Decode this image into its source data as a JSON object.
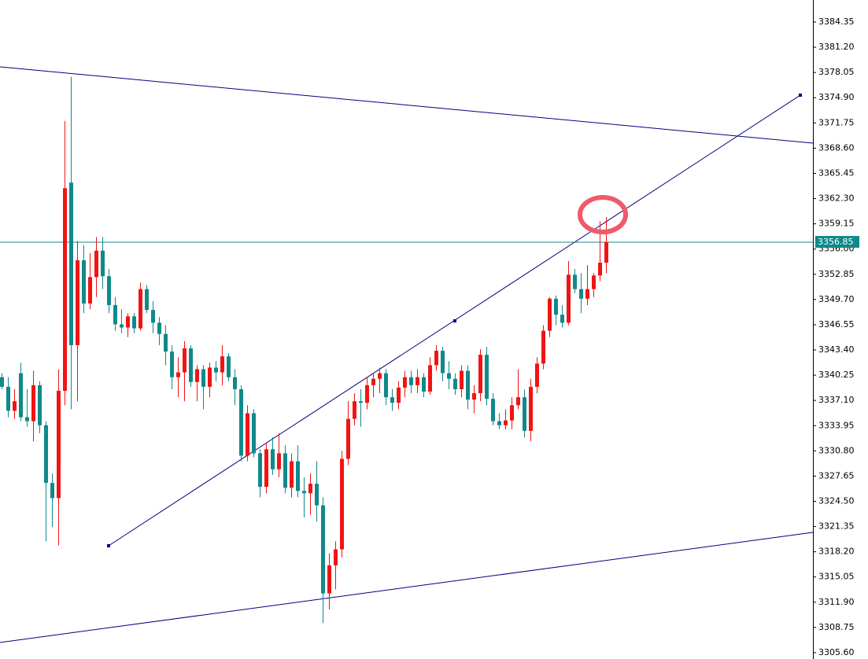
{
  "chart_data": {
    "type": "candlestick",
    "up_color": "#f01414",
    "down_color": "#10898a",
    "ylim": [
      3304.81,
      3387.1
    ],
    "yticks": [
      3384.35,
      {
        "value": 3381.2,
        "label": "3381.20"
      },
      3378.05,
      {
        "value": 3374.9,
        "label": "3374.90"
      },
      3371.75,
      {
        "value": 3368.6,
        "label": "3368.60"
      },
      3365.45,
      {
        "value": 3362.3,
        "label": "3362.30"
      },
      3359.15,
      {
        "value": 3356,
        "label": "3356.00"
      },
      3352.85,
      {
        "value": 3349.7,
        "label": "3349.70"
      },
      3346.55,
      {
        "value": 3343.4,
        "label": "3343.40"
      },
      3340.25,
      {
        "value": 3337.1,
        "label": "3337.10"
      },
      3333.95,
      {
        "value": 3330.8,
        "label": "3330.80"
      },
      3327.65,
      {
        "value": 3324.5,
        "label": "3324.50"
      },
      3321.35,
      {
        "value": 3318.2,
        "label": "3318.20"
      },
      3315.05,
      {
        "value": 3311.9,
        "label": "3311.90"
      },
      3308.75,
      {
        "value": 3305.6,
        "label": "3305.60"
      }
    ],
    "last_price": 3356.85,
    "open": [
      3340.0,
      3338.8,
      3335.8,
      3340.5,
      3335.0,
      3334.5,
      3339.0,
      3334.0,
      3326.8,
      3324.9,
      3338.3,
      3364.3,
      3344.0,
      3354.6,
      3349.2,
      3352.5,
      3355.8,
      3352.6,
      3349.0,
      3346.6,
      3346.2,
      3347.6,
      3346.1,
      3351.0,
      3348.4,
      3346.8,
      3345.4,
      3343.2,
      3340.0,
      3340.6,
      3343.6,
      3339.4,
      3341.0,
      3338.8,
      3341.2,
      3340.6,
      3342.6,
      3340.0,
      3338.5,
      3330.2,
      3335.5,
      3330.5,
      3326.3,
      3331.0,
      3328.5,
      3330.5,
      3326.2,
      3329.5,
      3325.8,
      3325.5,
      3326.7,
      3324.0,
      3313.0,
      3316.5,
      3318.5,
      3329.8,
      3334.8,
      3337.0,
      3336.8,
      3339.0,
      3339.8,
      3340.5,
      3337.5,
      3336.8,
      3338.7,
      3340.0,
      3339.0,
      3340.0,
      3338.2,
      3341.5,
      3343.3,
      3340.5,
      3339.8,
      3338.5,
      3340.8,
      3337.2,
      3338.0,
      3342.8,
      3337.3,
      3334.5,
      3334.0,
      3334.6,
      3336.5,
      3337.5,
      3333.3,
      3338.8,
      3341.7,
      3345.8,
      3349.8,
      3347.8,
      3346.8,
      3352.8,
      3351.0,
      3349.8,
      3351.0,
      3352.7,
      3354.3
    ],
    "high": [
      3340.5,
      3340.0,
      3338.5,
      3341.8,
      3338.5,
      3340.8,
      3339.5,
      3334.5,
      3328.0,
      3341.0,
      3372.0,
      3377.5,
      3357.0,
      3356.5,
      3355.5,
      3357.5,
      3357.5,
      3353.5,
      3350.0,
      3348.5,
      3348.0,
      3348.0,
      3351.8,
      3351.5,
      3349.5,
      3347.5,
      3346.5,
      3344.0,
      3342.5,
      3344.5,
      3344.0,
      3341.5,
      3341.5,
      3341.8,
      3342.0,
      3344.0,
      3343.0,
      3341.0,
      3339.0,
      3336.5,
      3336.0,
      3331.0,
      3331.8,
      3332.5,
      3333.0,
      3331.5,
      3330.5,
      3331.5,
      3327.5,
      3328.0,
      3329.5,
      3325.0,
      3318.0,
      3319.5,
      3330.8,
      3337.0,
      3338.0,
      3338.5,
      3340.0,
      3340.5,
      3341.2,
      3341.0,
      3338.5,
      3339.5,
      3340.8,
      3340.8,
      3341.0,
      3340.5,
      3342.5,
      3344.0,
      3343.8,
      3342.0,
      3340.5,
      3341.5,
      3341.5,
      3339.0,
      3343.5,
      3343.8,
      3338.0,
      3335.5,
      3336.0,
      3337.5,
      3341.0,
      3338.5,
      3339.8,
      3342.5,
      3346.5,
      3350.0,
      3350.2,
      3349.0,
      3354.5,
      3353.5,
      3353.0,
      3354.0,
      3353.0,
      3359.5,
      3360.0
    ],
    "low": [
      3338.5,
      3335.0,
      3334.8,
      3334.5,
      3333.8,
      3332.0,
      3333.0,
      3319.5,
      3321.3,
      3319.0,
      3336.5,
      3336.0,
      3337.0,
      3348.0,
      3348.5,
      3350.0,
      3351.0,
      3348.0,
      3345.8,
      3345.5,
      3345.0,
      3345.5,
      3345.8,
      3348.0,
      3345.5,
      3344.0,
      3341.5,
      3338.5,
      3337.5,
      3337.0,
      3338.8,
      3337.0,
      3336.0,
      3337.5,
      3339.5,
      3339.0,
      3339.5,
      3336.5,
      3329.5,
      3329.5,
      3330.0,
      3325.0,
      3325.5,
      3327.8,
      3327.5,
      3325.5,
      3325.0,
      3325.0,
      3322.5,
      3322.8,
      3322.0,
      3309.3,
      3311.0,
      3313.5,
      3317.5,
      3329.0,
      3334.0,
      3333.8,
      3336.0,
      3337.5,
      3338.0,
      3336.5,
      3335.8,
      3336.0,
      3337.5,
      3338.0,
      3338.0,
      3337.5,
      3337.8,
      3340.8,
      3339.5,
      3338.5,
      3337.8,
      3337.5,
      3336.0,
      3335.5,
      3337.0,
      3336.5,
      3334.0,
      3333.5,
      3333.5,
      3333.5,
      3336.0,
      3332.5,
      3332.0,
      3338.0,
      3341.0,
      3345.0,
      3346.5,
      3346.2,
      3346.5,
      3350.5,
      3348.0,
      3349.0,
      3350.0,
      3352.0,
      3353.0
    ],
    "close": [
      3338.8,
      3335.8,
      3337.0,
      3335.0,
      3334.5,
      3339.0,
      3334.0,
      3326.8,
      3324.9,
      3338.3,
      3363.6,
      3344.0,
      3354.6,
      3349.2,
      3352.5,
      3355.8,
      3352.6,
      3349.0,
      3346.6,
      3346.2,
      3347.6,
      3346.1,
      3351.0,
      3348.4,
      3346.8,
      3345.4,
      3343.2,
      3340.0,
      3340.6,
      3343.6,
      3339.4,
      3341.0,
      3338.8,
      3341.2,
      3340.6,
      3342.6,
      3340.0,
      3338.5,
      3330.2,
      3335.5,
      3330.5,
      3326.3,
      3331.0,
      3328.5,
      3330.5,
      3326.2,
      3329.5,
      3325.8,
      3325.5,
      3326.7,
      3324.0,
      3313.0,
      3316.5,
      3318.5,
      3329.8,
      3334.8,
      3337.0,
      3336.8,
      3339.0,
      3339.8,
      3340.5,
      3337.5,
      3336.8,
      3338.7,
      3340.0,
      3339.0,
      3340.0,
      3338.2,
      3341.5,
      3343.3,
      3340.5,
      3339.8,
      3338.5,
      3340.8,
      3337.2,
      3338.0,
      3342.8,
      3337.3,
      3334.5,
      3334.0,
      3334.6,
      3336.5,
      3337.5,
      3333.3,
      3338.8,
      3341.7,
      3345.8,
      3349.8,
      3347.8,
      3346.8,
      3352.8,
      3351.0,
      3349.8,
      3351.0,
      3352.7,
      3354.3,
      3356.85
    ]
  }
}
